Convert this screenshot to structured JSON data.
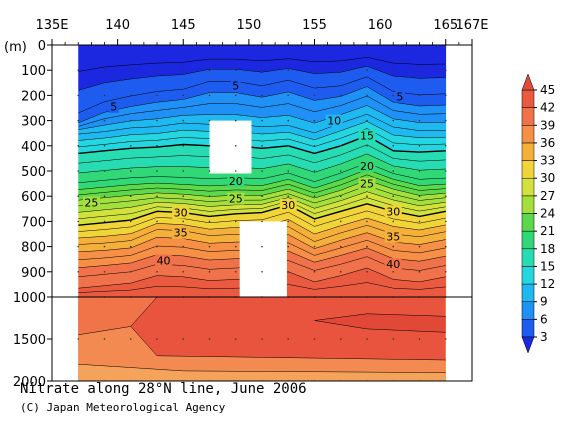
{
  "title": "Nitrate along 28°N line, June 2006",
  "credit": "(C) Japan Meteorological Agency",
  "chart_data": {
    "type": "heatmap",
    "x_ticks": [
      "135E",
      "140",
      "145",
      "150",
      "155",
      "160",
      "165",
      "167E"
    ],
    "x_tick_values": [
      135,
      140,
      145,
      150,
      155,
      160,
      165,
      167
    ],
    "xlim": [
      135,
      167
    ],
    "y_axis_unit": "(m)",
    "y_ticks_upper": [
      "0",
      "100",
      "200",
      "300",
      "400",
      "500",
      "600",
      "700",
      "800",
      "900",
      "1000"
    ],
    "y_ticks_lower": [
      "1500",
      "2000"
    ],
    "y_tick_values_upper": [
      0,
      100,
      200,
      300,
      400,
      500,
      600,
      700,
      800,
      900,
      1000
    ],
    "y_tick_values_lower": [
      1500,
      2000
    ],
    "data_lon_range": [
      137,
      165
    ],
    "colorbar": {
      "levels": [
        3,
        6,
        9,
        12,
        15,
        18,
        21,
        24,
        27,
        30,
        33,
        36,
        39,
        42,
        45
      ],
      "labels": [
        "45",
        "42",
        "39",
        "36",
        "33",
        "30",
        "27",
        "24",
        "21",
        "18",
        "15",
        "12",
        "9",
        "6",
        "3"
      ],
      "colors": [
        "#1c28e0",
        "#1e5cf0",
        "#1f90f5",
        "#1fb9f2",
        "#24d6df",
        "#27dcb2",
        "#30d878",
        "#5cd94a",
        "#a3e03e",
        "#d2e23c",
        "#f1d438",
        "#f5b03c",
        "#f59046",
        "#f0724a",
        "#e95a40",
        "#e24a3a"
      ]
    },
    "contour_lon": [
      137,
      139,
      141,
      143,
      145,
      147,
      149,
      151,
      153,
      155,
      157,
      159,
      161,
      163,
      165
    ],
    "contours": [
      {
        "level": 5,
        "depth": [
          300,
          250,
          225,
          205,
          195,
          160,
          160,
          180,
          155,
          190,
          180,
          140,
          205,
          220,
          215
        ]
      },
      {
        "level": 10,
        "depth": [
          345,
          335,
          320,
          315,
          300,
          305,
          305,
          315,
          310,
          340,
          300,
          265,
          315,
          330,
          330
        ]
      },
      {
        "level": 15,
        "depth": [
          430,
          420,
          410,
          405,
          395,
          400,
          400,
          410,
          400,
          430,
          400,
          360,
          420,
          425,
          420
        ]
      },
      {
        "level": 20,
        "depth": [
          560,
          550,
          540,
          535,
          540,
          545,
          540,
          545,
          520,
          555,
          520,
          480,
          520,
          545,
          540
        ]
      },
      {
        "level": 25,
        "depth": [
          630,
          620,
          610,
          600,
          605,
          615,
          610,
          610,
          585,
          620,
          590,
          550,
          585,
          610,
          600
        ]
      },
      {
        "level": 30,
        "depth": [
          715,
          705,
          695,
          660,
          665,
          680,
          670,
          665,
          635,
          690,
          660,
          630,
          660,
          680,
          660
        ]
      },
      {
        "level": 35,
        "depth": [
          800,
          795,
          785,
          740,
          745,
          765,
          760,
          760,
          730,
          790,
          755,
          725,
          760,
          770,
          750
        ]
      },
      {
        "level": 40,
        "depth": [
          905,
          895,
          885,
          855,
          860,
          875,
          870,
          865,
          840,
          880,
          855,
          825,
          870,
          880,
          860
        ]
      }
    ],
    "labels": [
      {
        "text": "5",
        "lon": 149.0,
        "depth": 160
      },
      {
        "text": "5",
        "lon": 161.5,
        "depth": 205
      },
      {
        "text": "5",
        "lon": 139.7,
        "depth": 245
      },
      {
        "text": "10",
        "lon": 156.5,
        "depth": 300
      },
      {
        "text": "15",
        "lon": 159.0,
        "depth": 360
      },
      {
        "text": "20",
        "lon": 159.0,
        "depth": 480
      },
      {
        "text": "25",
        "lon": 159.0,
        "depth": 550
      },
      {
        "text": "20",
        "lon": 149.0,
        "depth": 540
      },
      {
        "text": "25",
        "lon": 138.0,
        "depth": 625
      },
      {
        "text": "25",
        "lon": 149.0,
        "depth": 610
      },
      {
        "text": "30",
        "lon": 144.8,
        "depth": 665
      },
      {
        "text": "30",
        "lon": 153.0,
        "depth": 635
      },
      {
        "text": "30",
        "lon": 161.0,
        "depth": 660
      },
      {
        "text": "35",
        "lon": 144.8,
        "depth": 745
      },
      {
        "text": "35",
        "lon": 161.0,
        "depth": 760
      },
      {
        "text": "40",
        "lon": 143.5,
        "depth": 855
      },
      {
        "text": "40",
        "lon": 161.0,
        "depth": 870
      }
    ],
    "missing_regions": [
      {
        "lon": [
          147.0,
          150.2
        ],
        "depth": [
          300,
          510
        ]
      },
      {
        "lon": [
          149.3,
          152.9
        ],
        "depth": [
          700,
          1000
        ]
      }
    ]
  }
}
